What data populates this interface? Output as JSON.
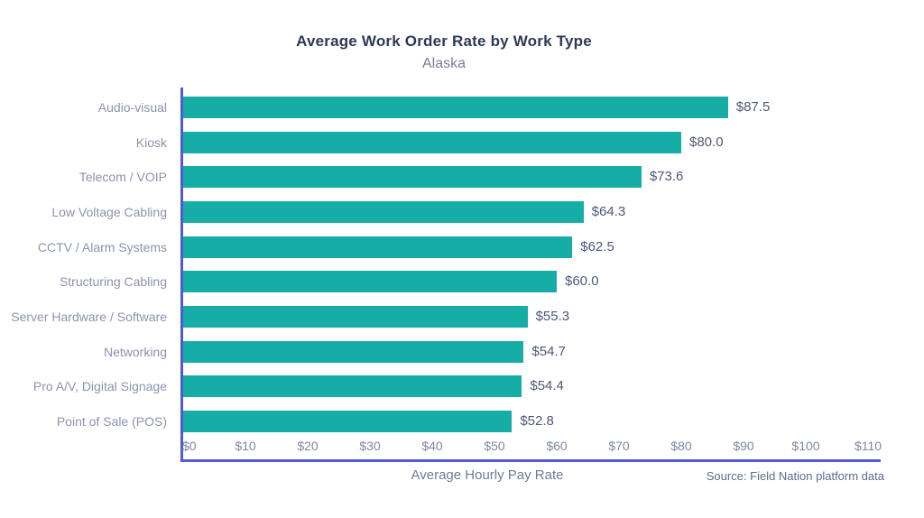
{
  "chart_data": {
    "type": "bar",
    "orientation": "horizontal",
    "title": "Average Work Order Rate by Work Type",
    "subtitle": "Alaska",
    "categories": [
      "Audio-visual",
      "Kiosk",
      "Telecom / VOIP",
      "Low Voltage Cabling",
      "CCTV / Alarm Systems",
      "Structuring Cabling",
      "Server Hardware / Software",
      "Networking",
      "Pro A/V, Digital Signage",
      "Point of Sale (POS)"
    ],
    "values": [
      87.5,
      80.0,
      73.6,
      64.3,
      62.5,
      60.0,
      55.3,
      54.7,
      54.4,
      52.8
    ],
    "value_labels": [
      "$87.5",
      "$80.0",
      "$73.6",
      "$64.3",
      "$62.5",
      "$60.0",
      "$55.3",
      "$54.7",
      "$54.4",
      "$52.8"
    ],
    "xlabel": "Average Hourly Pay Rate",
    "x_ticks": [
      "$0",
      "$10",
      "$20",
      "$30",
      "$40",
      "$50",
      "$60",
      "$70",
      "$80",
      "$90",
      "$100",
      "$110"
    ],
    "xlim": [
      0,
      110
    ],
    "grid": false,
    "legend": false,
    "source": "Source: Field Nation platform data",
    "colors": {
      "bar": "#17ada7",
      "axis": "#5159d4",
      "title": "#2e3a55",
      "subtitle": "#757d9a",
      "category": "#8b93af",
      "value": "#4e5878",
      "tick": "#7d86a8",
      "xlabel": "#6f7a9c",
      "source": "#5f6a8e"
    }
  }
}
